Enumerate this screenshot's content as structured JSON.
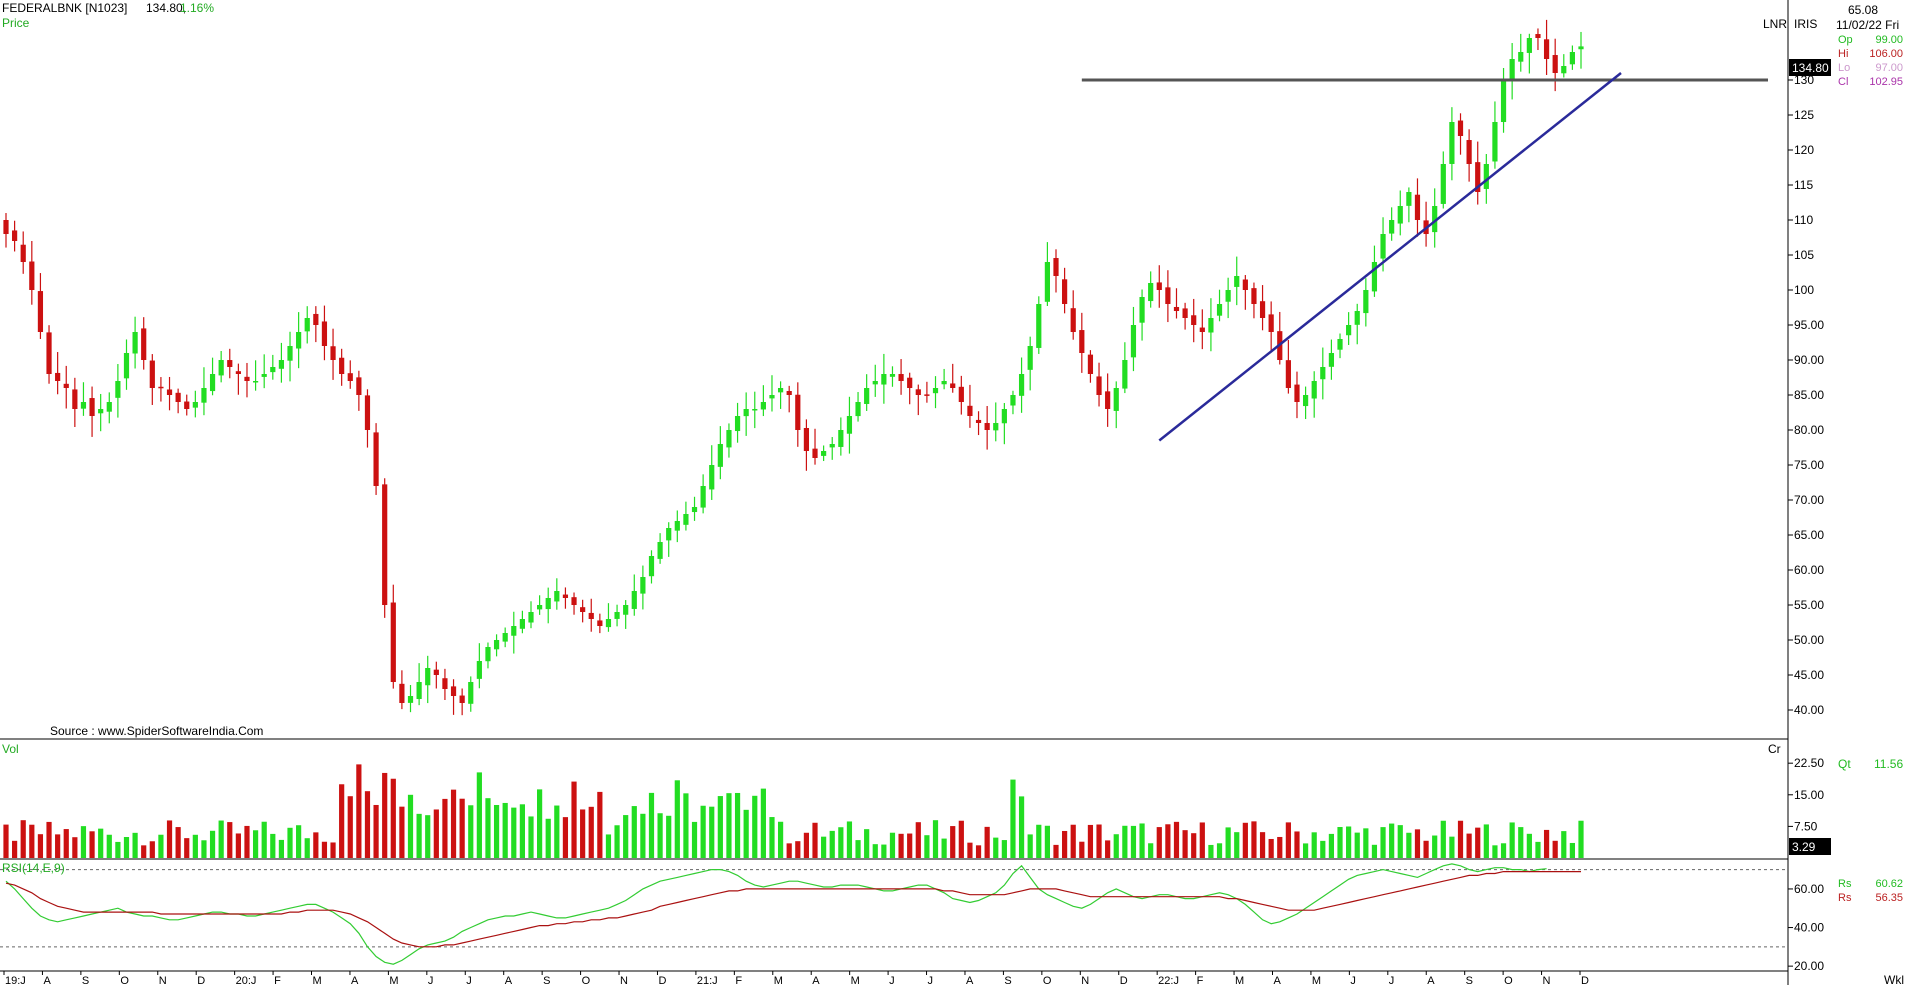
{
  "header": {
    "symbol": "FEDERALBNK [N1023]",
    "last_price": "134.80,",
    "change_pct": "1.16%",
    "pane_label": "Price",
    "source": "Source : www.SpiderSoftwareIndia.Com"
  },
  "info_panel": {
    "lnr": "LNR",
    "iris": "IRIS",
    "top_value": "65.08",
    "date": "11/02/22 Fri",
    "ohlc": [
      {
        "label": "Op",
        "value": "99.00",
        "color": "#22bb22"
      },
      {
        "label": "Hi",
        "value": "106.00",
        "color": "#bb2222"
      },
      {
        "label": "Lo",
        "value": "97.00",
        "color": "#cc99cc"
      },
      {
        "label": "Cl",
        "value": "102.95",
        "color": "#aa33aa"
      }
    ],
    "price_badge": "134.80",
    "volume_label": "Vol",
    "volume_unit": "Cr",
    "qt_label": "Qt",
    "qt_value": "11.56",
    "volume_badge": "3.29",
    "rsi_label": "RSI(14,E,9)",
    "rsi_rows": [
      {
        "label": "Rs",
        "value": "60.62",
        "color": "#22bb22"
      },
      {
        "label": "Rs",
        "value": "56.35",
        "color": "#bb2222"
      }
    ],
    "timeframe": "Wkl"
  },
  "colors": {
    "up": "#22dd22",
    "down": "#cc1111",
    "trendline": "#2a2a9a",
    "resistance": "#555555",
    "rsi": "#33cc33",
    "rsi_signal": "#aa1111",
    "axis": "#000000",
    "grid_dash": "#666666"
  },
  "chart_data": [
    {
      "type": "candlestick",
      "interval": "weekly",
      "title": "",
      "ylim": [
        36,
        140
      ],
      "yticks": [
        "40.00",
        "45.00",
        "50.00",
        "55.00",
        "60.00",
        "65.00",
        "70.00",
        "75.00",
        "80.00",
        "85.00",
        "90.00",
        "95.00",
        "100",
        "105",
        "110",
        "115",
        "120",
        "125",
        "130"
      ],
      "ytick_values": [
        40,
        45,
        50,
        55,
        60,
        65,
        70,
        75,
        80,
        85,
        90,
        95,
        100,
        105,
        110,
        115,
        120,
        125,
        130
      ],
      "xticks": [
        "19:J",
        "A",
        "S",
        "O",
        "N",
        "D",
        "20:J",
        "F",
        "M",
        "A",
        "M",
        "J",
        "J",
        "A",
        "S",
        "O",
        "N",
        "D",
        "21:J",
        "F",
        "M",
        "A",
        "M",
        "J",
        "J",
        "A",
        "S",
        "O",
        "N",
        "D",
        "22:J",
        "F",
        "M",
        "A",
        "M",
        "J",
        "J",
        "A",
        "S",
        "O",
        "N",
        "D"
      ],
      "close_path": [
        108,
        107,
        104,
        100,
        94,
        88,
        87,
        86,
        83,
        84,
        82,
        83,
        84,
        87,
        91,
        94,
        90,
        86,
        86,
        85,
        84,
        83,
        84,
        86,
        88,
        90,
        89,
        88,
        87,
        87,
        88,
        89,
        90,
        92,
        94,
        96,
        95,
        92,
        90,
        88,
        87,
        85,
        80,
        72,
        55,
        44,
        41,
        42,
        44,
        46,
        45,
        43,
        42,
        41,
        44,
        47,
        49,
        50,
        51,
        52,
        53,
        54,
        55,
        56,
        57,
        56,
        55,
        54,
        53,
        52,
        53,
        54,
        55,
        57,
        59,
        62,
        64,
        66,
        67,
        68,
        69,
        72,
        75,
        78,
        80,
        82,
        83,
        83,
        84,
        85,
        86,
        85,
        80,
        77,
        76,
        77,
        78,
        80,
        82,
        84,
        86,
        87,
        88,
        88,
        87,
        86,
        85,
        85,
        86,
        87,
        86,
        84,
        82,
        81,
        80,
        81,
        83,
        85,
        88,
        92,
        98,
        104,
        102,
        98,
        94,
        91,
        88,
        85,
        83,
        86,
        90,
        95,
        99,
        101,
        100,
        98,
        97,
        96,
        95,
        94,
        96,
        98,
        100,
        102,
        100,
        98,
        96,
        94,
        90,
        86,
        84,
        85,
        87,
        89,
        91,
        93,
        95,
        97,
        100,
        104,
        108,
        110,
        112,
        114,
        110,
        108,
        112,
        118,
        124,
        122,
        118,
        114,
        118,
        124,
        130,
        133,
        134,
        136,
        136,
        133,
        131,
        132,
        134,
        134.8
      ],
      "events": [
        {
          "label": "resistance",
          "price": 130
        },
        {
          "label": "trendline",
          "from_price": 78.5,
          "to_price": 131
        }
      ]
    },
    {
      "type": "bar",
      "title": "",
      "ylabel": "",
      "yticks": [
        "7.50",
        "15.00",
        "22.50"
      ],
      "ytick_values": [
        7.5,
        15,
        22.5
      ],
      "ylim": [
        0,
        28
      ]
    },
    {
      "type": "line",
      "title": "",
      "ylabel": "",
      "yticks": [
        "20.00",
        "40.00",
        "60.00"
      ],
      "ytick_values": [
        20,
        40,
        60
      ],
      "ylim": [
        18,
        75
      ],
      "reference_levels": [
        70,
        30
      ],
      "series": [
        {
          "values": [
            64,
            60,
            55,
            50,
            46,
            44,
            43,
            44,
            45,
            46,
            47,
            48,
            49,
            50,
            48,
            47,
            46,
            46,
            45,
            44,
            44,
            45,
            46,
            47,
            48,
            48,
            47,
            47,
            46,
            46,
            47,
            48,
            49,
            50,
            51,
            52,
            52,
            50,
            48,
            45,
            42,
            37,
            30,
            25,
            22,
            21,
            23,
            26,
            29,
            31,
            32,
            33,
            35,
            38,
            40,
            42,
            44,
            45,
            46,
            46,
            47,
            48,
            47,
            46,
            45,
            45,
            46,
            47,
            48,
            49,
            50,
            52,
            54,
            57,
            60,
            62,
            64,
            65,
            66,
            67,
            68,
            69,
            70,
            70,
            69,
            67,
            64,
            62,
            61,
            62,
            63,
            64,
            64,
            63,
            62,
            61,
            61,
            62,
            62,
            62,
            61,
            60,
            59,
            59,
            60,
            61,
            62,
            62,
            60,
            58,
            55,
            54,
            53,
            54,
            56,
            58,
            62,
            68,
            72,
            66,
            60,
            57,
            55,
            53,
            51,
            50,
            52,
            55,
            58,
            60,
            58,
            56,
            55,
            56,
            57,
            57,
            56,
            55,
            55,
            56,
            57,
            58,
            57,
            55,
            52,
            48,
            44,
            42,
            43,
            45,
            47,
            50,
            53,
            56,
            59,
            62,
            65,
            67,
            68,
            69,
            70,
            69,
            68,
            67,
            66,
            68,
            70,
            72,
            73,
            72,
            70,
            69,
            70,
            71,
            71,
            70,
            70,
            69,
            70,
            70.5
          ]
        },
        {
          "values": [
            63,
            62,
            60,
            58,
            55,
            53,
            51,
            50,
            49,
            48,
            48,
            48,
            48,
            48,
            48,
            48,
            48,
            48,
            47,
            47,
            47,
            47,
            47,
            47,
            47,
            47,
            47,
            47,
            47,
            47,
            47,
            47,
            47,
            48,
            48,
            49,
            49,
            49,
            49,
            48,
            47,
            45,
            43,
            40,
            37,
            34,
            32,
            31,
            30,
            30,
            30,
            31,
            31,
            32,
            33,
            34,
            35,
            36,
            37,
            38,
            39,
            40,
            41,
            41,
            42,
            42,
            43,
            43,
            44,
            44,
            45,
            45,
            46,
            47,
            48,
            49,
            51,
            52,
            53,
            54,
            55,
            56,
            57,
            58,
            59,
            59,
            60,
            60,
            60,
            60,
            60,
            60,
            60,
            60,
            60,
            60,
            60,
            60,
            60,
            60,
            60,
            60,
            60,
            60,
            60,
            60,
            60,
            60,
            60,
            59,
            59,
            58,
            57,
            57,
            57,
            57,
            57,
            58,
            59,
            60,
            60,
            60,
            60,
            59,
            58,
            57,
            56,
            56,
            56,
            56,
            56,
            56,
            56,
            56,
            56,
            56,
            56,
            56,
            56,
            56,
            56,
            56,
            55,
            55,
            54,
            53,
            52,
            51,
            50,
            49,
            49,
            49,
            49,
            50,
            51,
            52,
            53,
            54,
            55,
            56,
            57,
            58,
            59,
            60,
            61,
            62,
            63,
            64,
            65,
            66,
            67,
            67,
            68,
            68,
            69,
            69,
            69,
            69,
            69,
            69,
            69,
            69,
            69,
            69
          ]
        }
      ]
    }
  ]
}
